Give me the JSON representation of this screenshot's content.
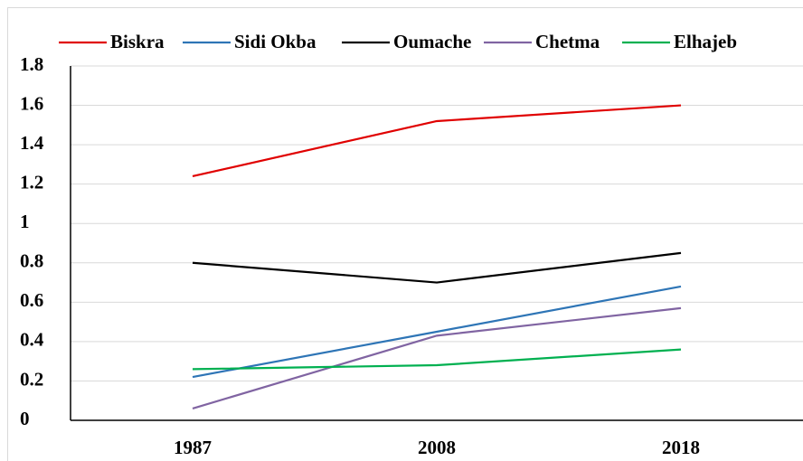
{
  "chart_data": {
    "type": "line",
    "categories": [
      "1987",
      "2008",
      "2018"
    ],
    "series": [
      {
        "name": "Biskra",
        "color": "#e00000",
        "values": [
          1.24,
          1.52,
          1.6
        ]
      },
      {
        "name": "Sidi Okba",
        "color": "#2e75b6",
        "values": [
          0.22,
          0.45,
          0.68
        ]
      },
      {
        "name": "Oumache",
        "color": "#000000",
        "values": [
          0.8,
          0.7,
          0.85
        ]
      },
      {
        "name": "Chetma",
        "color": "#8064a2",
        "values": [
          0.06,
          0.43,
          0.57
        ]
      },
      {
        "name": "Elhajeb",
        "color": "#00b050",
        "values": [
          0.26,
          0.28,
          0.36
        ]
      }
    ],
    "ylim": [
      0,
      1.8
    ],
    "yticks": [
      0,
      0.2,
      0.4,
      0.6,
      0.8,
      1,
      1.2,
      1.4,
      1.6,
      1.8
    ],
    "grid": true,
    "legend": "top"
  }
}
